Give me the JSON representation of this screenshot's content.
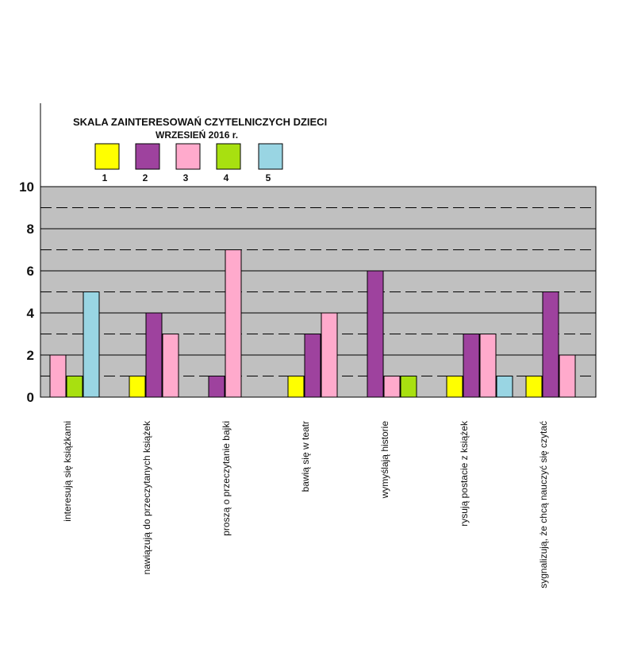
{
  "chart_data": {
    "type": "bar",
    "title": "SKALA ZAINTERESOWAŃ CZYTELNICZYCH DZIECI",
    "subtitle": "WRZESIEŃ 2016 r.",
    "xlabel": "",
    "ylabel": "",
    "ylim": [
      0,
      10
    ],
    "y_tick_labels": [
      "0",
      "2",
      "4",
      "6",
      "8",
      "10"
    ],
    "grid": true,
    "legend_position": "top-left",
    "categories": [
      "interesują się książkami",
      "nawiązują do przeczytanych książek",
      "proszą o przeczytanie bajki",
      "bawią się w teatr",
      "wymyślają historie",
      "rysują postacie z książek",
      "sygnalizują, że chcą nauczyć się czytać"
    ],
    "series": [
      {
        "name": "1",
        "color": "#ffff00",
        "values": [
          0,
          1,
          0,
          1,
          0,
          1,
          1
        ]
      },
      {
        "name": "2",
        "color": "#9e429e",
        "values": [
          0,
          4,
          1,
          3,
          6,
          3,
          5
        ]
      },
      {
        "name": "3",
        "color": "#ffaacc",
        "values": [
          2,
          3,
          7,
          4,
          1,
          3,
          2
        ]
      },
      {
        "name": "4",
        "color": "#a8e010",
        "values": [
          1,
          0,
          0,
          0,
          1,
          0,
          0
        ]
      },
      {
        "name": "5",
        "color": "#99d5e3",
        "values": [
          5,
          0,
          0,
          0,
          0,
          1,
          0
        ]
      }
    ],
    "plot_background": "#c0c0c0"
  }
}
